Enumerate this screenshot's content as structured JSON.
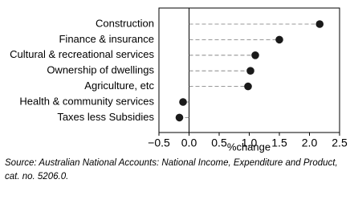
{
  "chart_data": {
    "type": "dot",
    "categories": [
      "Construction",
      "Finance & insurance",
      "Cultural & recreational services",
      "Ownership of dwellings",
      "Agriculture, etc",
      "Health & community services",
      "Taxes less Subsidies"
    ],
    "values": [
      2.17,
      1.5,
      1.1,
      1.02,
      0.98,
      -0.1,
      -0.16
    ],
    "color": "#1a1a1a",
    "xlabel": "%change",
    "xlim": [
      -0.5,
      2.5
    ],
    "xticks": [
      {
        "value": -0.5,
        "label": "−0.5"
      },
      {
        "value": 0,
        "label": "0.0"
      },
      0.5,
      {
        "value": 1,
        "label": "1.0"
      },
      1.5,
      {
        "value": 2,
        "label": "2.0"
      },
      2.5
    ],
    "source": "Source: Australian National Accounts: National Income, Expenditure and Product, cat. no. 5206.0."
  }
}
